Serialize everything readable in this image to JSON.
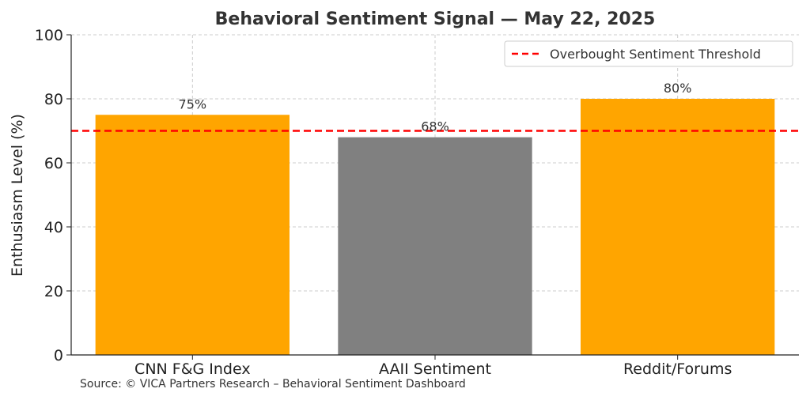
{
  "chart_data": {
    "type": "bar",
    "title": "Behavioral Sentiment Signal — May 22, 2025",
    "xlabel": "",
    "ylabel": "Enthusiasm Level (%)",
    "categories": [
      "CNN F&G Index",
      "AAII Sentiment",
      "Reddit/Forums"
    ],
    "values": [
      75,
      68,
      80
    ],
    "value_labels": [
      "75%",
      "68%",
      "80%"
    ],
    "bar_colors": [
      "#FFA500",
      "#808080",
      "#FFA500"
    ],
    "ylim": [
      0,
      100
    ],
    "yticks": [
      0,
      20,
      40,
      60,
      80,
      100
    ],
    "grid": true,
    "threshold": {
      "value": 70,
      "label": "Overbought Sentiment Threshold",
      "color": "#FF0000",
      "style": "dashed"
    },
    "legend_position": "top-right"
  },
  "footer": {
    "source": "Source: © VICA Partners Research – Behavioral Sentiment Dashboard"
  }
}
